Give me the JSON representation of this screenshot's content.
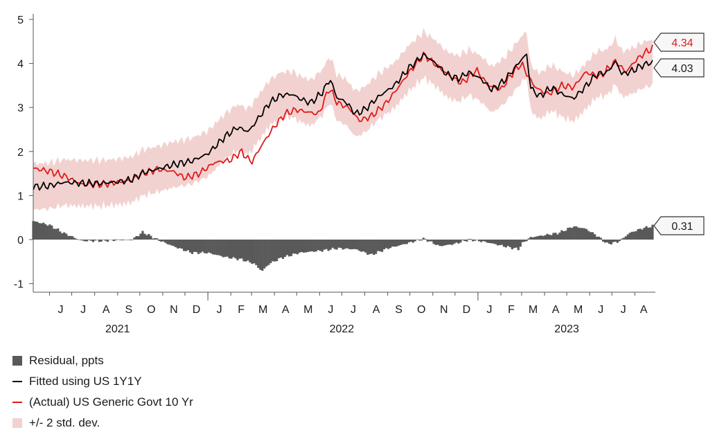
{
  "chart_data": {
    "type": "line",
    "title": "",
    "xlabel": "",
    "ylabel": "",
    "ylim": [
      -1.2,
      5
    ],
    "yticks": [
      5,
      4,
      3,
      2,
      1,
      0,
      -1
    ],
    "x_range": [
      "2021-05-10",
      "2023-08-25"
    ],
    "month_ticks": [
      {
        "date": "2021-06-01",
        "label": "J"
      },
      {
        "date": "2021-07-01",
        "label": "J"
      },
      {
        "date": "2021-08-01",
        "label": "A"
      },
      {
        "date": "2021-09-01",
        "label": "S"
      },
      {
        "date": "2021-10-01",
        "label": "O"
      },
      {
        "date": "2021-11-01",
        "label": "N"
      },
      {
        "date": "2021-12-01",
        "label": "D"
      },
      {
        "date": "2022-01-01",
        "label": "J"
      },
      {
        "date": "2022-02-01",
        "label": "F"
      },
      {
        "date": "2022-03-01",
        "label": "M"
      },
      {
        "date": "2022-04-01",
        "label": "A"
      },
      {
        "date": "2022-05-01",
        "label": "M"
      },
      {
        "date": "2022-06-01",
        "label": "J"
      },
      {
        "date": "2022-07-01",
        "label": "J"
      },
      {
        "date": "2022-08-01",
        "label": "A"
      },
      {
        "date": "2022-09-01",
        "label": "S"
      },
      {
        "date": "2022-10-01",
        "label": "O"
      },
      {
        "date": "2022-11-01",
        "label": "N"
      },
      {
        "date": "2022-12-01",
        "label": "D"
      },
      {
        "date": "2023-01-01",
        "label": "J"
      },
      {
        "date": "2023-02-01",
        "label": "F"
      },
      {
        "date": "2023-03-01",
        "label": "M"
      },
      {
        "date": "2023-04-01",
        "label": "A"
      },
      {
        "date": "2023-05-01",
        "label": "M"
      },
      {
        "date": "2023-06-01",
        "label": "J"
      },
      {
        "date": "2023-07-01",
        "label": "J"
      },
      {
        "date": "2023-08-01",
        "label": "A"
      }
    ],
    "year_labels": [
      {
        "label": "2021",
        "center": "2021-09-01"
      },
      {
        "label": "2022",
        "center": "2022-07-01"
      },
      {
        "label": "2023",
        "center": "2023-05-01"
      }
    ],
    "year_separators": [
      "2022-01-01",
      "2023-01-01"
    ],
    "band_halfwidth": 0.52,
    "series": [
      {
        "name": "Fitted using US 1Y1Y",
        "color": "#000000",
        "points": [
          [
            "2021-05-10",
            1.2
          ],
          [
            "2021-06-01",
            1.22
          ],
          [
            "2021-06-20",
            1.3
          ],
          [
            "2021-07-15",
            1.28
          ],
          [
            "2021-08-10",
            1.28
          ],
          [
            "2021-09-01",
            1.31
          ],
          [
            "2021-09-20",
            1.36
          ],
          [
            "2021-10-05",
            1.52
          ],
          [
            "2021-10-25",
            1.6
          ],
          [
            "2021-11-15",
            1.7
          ],
          [
            "2021-12-10",
            1.78
          ],
          [
            "2022-01-01",
            1.95
          ],
          [
            "2022-01-25",
            2.35
          ],
          [
            "2022-02-10",
            2.55
          ],
          [
            "2022-02-25",
            2.45
          ],
          [
            "2022-03-10",
            2.75
          ],
          [
            "2022-03-25",
            3.1
          ],
          [
            "2022-04-10",
            3.28
          ],
          [
            "2022-04-25",
            3.3
          ],
          [
            "2022-05-05",
            3.2
          ],
          [
            "2022-05-20",
            3.1
          ],
          [
            "2022-06-05",
            3.35
          ],
          [
            "2022-06-15",
            3.65
          ],
          [
            "2022-06-25",
            3.2
          ],
          [
            "2022-07-05",
            3.15
          ],
          [
            "2022-07-20",
            2.85
          ],
          [
            "2022-08-01",
            2.95
          ],
          [
            "2022-08-20",
            3.25
          ],
          [
            "2022-09-10",
            3.5
          ],
          [
            "2022-09-30",
            3.9
          ],
          [
            "2022-10-20",
            4.2
          ],
          [
            "2022-11-05",
            4.0
          ],
          [
            "2022-11-20",
            3.75
          ],
          [
            "2022-12-05",
            3.65
          ],
          [
            "2022-12-20",
            3.8
          ],
          [
            "2023-01-05",
            3.65
          ],
          [
            "2023-01-20",
            3.4
          ],
          [
            "2023-02-05",
            3.6
          ],
          [
            "2023-02-20",
            3.9
          ],
          [
            "2023-03-01",
            4.1
          ],
          [
            "2023-03-08",
            4.2
          ],
          [
            "2023-03-13",
            3.45
          ],
          [
            "2023-03-25",
            3.25
          ],
          [
            "2023-04-10",
            3.45
          ],
          [
            "2023-04-25",
            3.3
          ],
          [
            "2023-05-10",
            3.2
          ],
          [
            "2023-05-25",
            3.45
          ],
          [
            "2023-06-10",
            3.75
          ],
          [
            "2023-06-25",
            3.8
          ],
          [
            "2023-07-06",
            4.05
          ],
          [
            "2023-07-15",
            3.75
          ],
          [
            "2023-07-31",
            3.85
          ],
          [
            "2023-08-10",
            3.95
          ],
          [
            "2023-08-25",
            4.03
          ]
        ]
      },
      {
        "name": "(Actual) US Generic Govt 10 Yr",
        "color": "#e0191b",
        "points": [
          [
            "2021-05-10",
            1.62
          ],
          [
            "2021-06-01",
            1.55
          ],
          [
            "2021-06-20",
            1.45
          ],
          [
            "2021-07-15",
            1.25
          ],
          [
            "2021-08-10",
            1.25
          ],
          [
            "2021-09-01",
            1.3
          ],
          [
            "2021-09-20",
            1.35
          ],
          [
            "2021-10-05",
            1.5
          ],
          [
            "2021-10-25",
            1.6
          ],
          [
            "2021-11-15",
            1.55
          ],
          [
            "2021-12-01",
            1.4
          ],
          [
            "2021-12-20",
            1.5
          ],
          [
            "2022-01-10",
            1.75
          ],
          [
            "2022-01-31",
            1.8
          ],
          [
            "2022-02-15",
            2.0
          ],
          [
            "2022-03-01",
            1.75
          ],
          [
            "2022-03-15",
            2.15
          ],
          [
            "2022-03-31",
            2.55
          ],
          [
            "2022-04-15",
            2.85
          ],
          [
            "2022-04-30",
            2.95
          ],
          [
            "2022-05-15",
            2.9
          ],
          [
            "2022-05-31",
            2.85
          ],
          [
            "2022-06-14",
            3.45
          ],
          [
            "2022-06-25",
            3.1
          ],
          [
            "2022-07-10",
            3.0
          ],
          [
            "2022-07-25",
            2.7
          ],
          [
            "2022-08-10",
            2.8
          ],
          [
            "2022-08-30",
            3.1
          ],
          [
            "2022-09-15",
            3.45
          ],
          [
            "2022-09-30",
            3.8
          ],
          [
            "2022-10-20",
            4.2
          ],
          [
            "2022-11-10",
            3.9
          ],
          [
            "2022-11-25",
            3.7
          ],
          [
            "2022-12-10",
            3.55
          ],
          [
            "2022-12-30",
            3.85
          ],
          [
            "2023-01-15",
            3.5
          ],
          [
            "2023-02-01",
            3.4
          ],
          [
            "2023-02-15",
            3.75
          ],
          [
            "2023-03-01",
            4.0
          ],
          [
            "2023-03-10",
            3.7
          ],
          [
            "2023-03-20",
            3.45
          ],
          [
            "2023-04-05",
            3.3
          ],
          [
            "2023-04-25",
            3.5
          ],
          [
            "2023-05-10",
            3.45
          ],
          [
            "2023-05-26",
            3.8
          ],
          [
            "2023-06-15",
            3.7
          ],
          [
            "2023-07-06",
            4.05
          ],
          [
            "2023-07-20",
            3.8
          ],
          [
            "2023-08-01",
            4.05
          ],
          [
            "2023-08-15",
            4.25
          ],
          [
            "2023-08-25",
            4.34
          ]
        ]
      },
      {
        "name": "Residual, ppts",
        "color": "#595959",
        "kind": "bars",
        "points": [
          [
            "2021-05-10",
            0.42
          ],
          [
            "2021-06-01",
            0.33
          ],
          [
            "2021-06-20",
            0.15
          ],
          [
            "2021-07-15",
            -0.03
          ],
          [
            "2021-08-10",
            -0.03
          ],
          [
            "2021-09-01",
            -0.01
          ],
          [
            "2021-09-20",
            -0.01
          ],
          [
            "2021-10-05",
            0.17
          ],
          [
            "2021-10-25",
            0.0
          ],
          [
            "2021-11-15",
            -0.15
          ],
          [
            "2021-12-10",
            -0.3
          ],
          [
            "2022-01-01",
            -0.3
          ],
          [
            "2022-01-25",
            -0.4
          ],
          [
            "2022-02-15",
            -0.45
          ],
          [
            "2022-03-05",
            -0.55
          ],
          [
            "2022-03-15",
            -0.72
          ],
          [
            "2022-03-25",
            -0.55
          ],
          [
            "2022-04-10",
            -0.42
          ],
          [
            "2022-05-05",
            -0.3
          ],
          [
            "2022-06-05",
            -0.25
          ],
          [
            "2022-06-25",
            -0.2
          ],
          [
            "2022-07-20",
            -0.22
          ],
          [
            "2022-08-10",
            -0.35
          ],
          [
            "2022-09-01",
            -0.2
          ],
          [
            "2022-09-20",
            -0.12
          ],
          [
            "2022-10-05",
            -0.05
          ],
          [
            "2022-10-20",
            0.02
          ],
          [
            "2022-11-10",
            -0.15
          ],
          [
            "2022-11-30",
            -0.1
          ],
          [
            "2022-12-20",
            0.0
          ],
          [
            "2023-01-10",
            -0.05
          ],
          [
            "2023-02-05",
            -0.15
          ],
          [
            "2023-02-25",
            -0.22
          ],
          [
            "2023-03-01",
            -0.1
          ],
          [
            "2023-03-13",
            0.05
          ],
          [
            "2023-04-01",
            0.1
          ],
          [
            "2023-04-20",
            0.15
          ],
          [
            "2023-05-10",
            0.3
          ],
          [
            "2023-05-26",
            0.25
          ],
          [
            "2023-06-10",
            0.1
          ],
          [
            "2023-06-25",
            -0.1
          ],
          [
            "2023-07-10",
            -0.05
          ],
          [
            "2023-07-25",
            0.15
          ],
          [
            "2023-08-10",
            0.25
          ],
          [
            "2023-08-25",
            0.31
          ]
        ]
      }
    ],
    "end_labels": [
      {
        "text": "4.34",
        "value": 4.34,
        "color": "#e0191b"
      },
      {
        "text": "4.03",
        "value": 4.03,
        "color": "#1a1a1a"
      },
      {
        "text": "0.31",
        "value": 0.31,
        "color": "#1a1a1a"
      }
    ],
    "legend": [
      {
        "label": "Residual, ppts",
        "kind": "box",
        "color": "#595959"
      },
      {
        "label": "Fitted using US 1Y1Y",
        "kind": "line",
        "color": "#000000"
      },
      {
        "label": "(Actual) US Generic Govt 10 Yr",
        "kind": "line",
        "color": "#e0191b"
      },
      {
        "label": "+/- 2 std. dev.",
        "kind": "box",
        "color": "#f2d2d0"
      }
    ]
  }
}
